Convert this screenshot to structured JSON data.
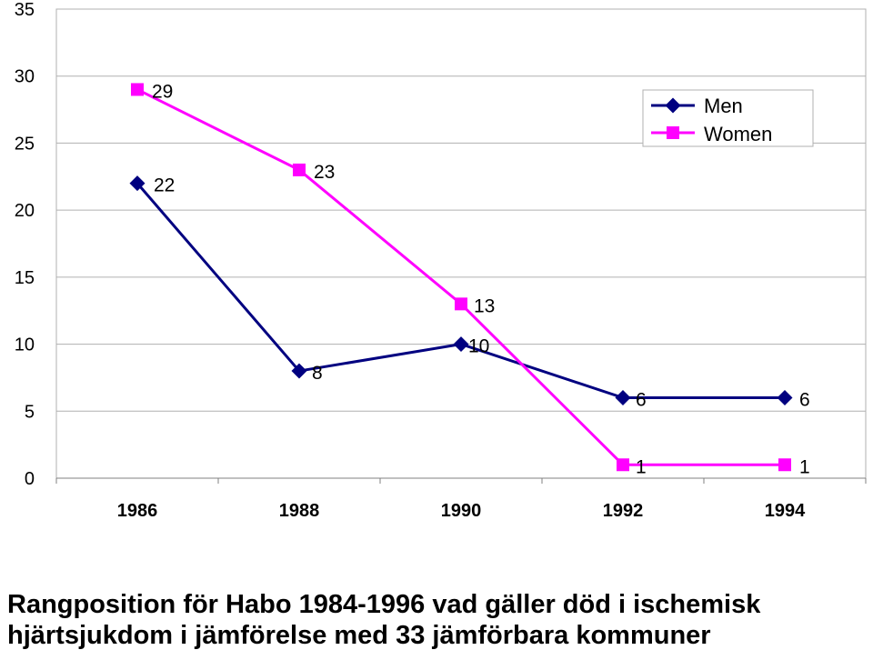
{
  "chart_data": {
    "type": "line",
    "x": [
      "1986",
      "1988",
      "1990",
      "1992",
      "1994"
    ],
    "y_ticks": [
      "0",
      "5",
      "10",
      "15",
      "20",
      "25",
      "30",
      "35"
    ],
    "ylim": [
      0,
      35
    ],
    "grid": true,
    "legend_position": "top-right",
    "series": [
      {
        "name": "Men",
        "values": [
          22,
          8,
          10,
          6,
          6
        ],
        "labels": [
          "22",
          "8",
          "10",
          "6",
          "6"
        ],
        "color": "#000080",
        "marker": "diamond"
      },
      {
        "name": "Women",
        "values": [
          29,
          23,
          13,
          1,
          1
        ],
        "labels": [
          "29",
          "23",
          "13",
          "1",
          "1"
        ],
        "color": "#ff00ff",
        "marker": "square"
      }
    ]
  },
  "caption": {
    "line1": "Rangposition för Habo 1984-1996 vad gäller död i ischemisk",
    "line2": "hjärtsjukdom i jämförelse med 33 jämförbara kommuner"
  }
}
